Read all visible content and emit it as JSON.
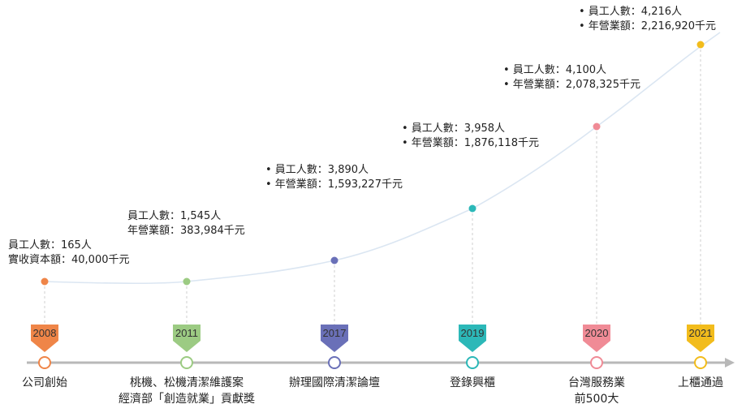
{
  "colors": {
    "axis": "#b8b8b8",
    "curve": "#dbe6f2",
    "guide": "#cfcfcf"
  },
  "milestones": [
    {
      "year": "2008",
      "color": "#ef8548",
      "event": [
        "公司創始"
      ],
      "stats": [
        "員工人數：165人",
        "實收資本額：40,000千元"
      ],
      "bullets": false
    },
    {
      "year": "2011",
      "color": "#9ccb83",
      "event": [
        "桃機、松機清潔維護案",
        "經濟部「創造就業」貢獻獎"
      ],
      "stats": [
        "員工人數：1,545人",
        "年營業額：383,984千元"
      ],
      "bullets": false
    },
    {
      "year": "2017",
      "color": "#6a70b8",
      "event": [
        "辦理國際清潔論壇"
      ],
      "stats": [
        "員工人數：3,890人",
        "年營業額：1,593,227千元"
      ],
      "bullets": true
    },
    {
      "year": "2019",
      "color": "#2cb8b8",
      "event": [
        "登錄興櫃"
      ],
      "stats": [
        "員工人數：3,958人",
        "年營業額：1,876,118千元"
      ],
      "bullets": true
    },
    {
      "year": "2020",
      "color": "#f08b96",
      "event": [
        "台灣服務業",
        "前500大"
      ],
      "stats": [
        "員工人數：4,100人",
        "年營業額：2,078,325千元"
      ],
      "bullets": true
    },
    {
      "year": "2021",
      "color": "#f2bc1c",
      "event": [
        "上櫃通過"
      ],
      "stats": [
        "員工人數：4,216人",
        "年營業額：2,216,920千元"
      ],
      "bullets": true
    }
  ]
}
